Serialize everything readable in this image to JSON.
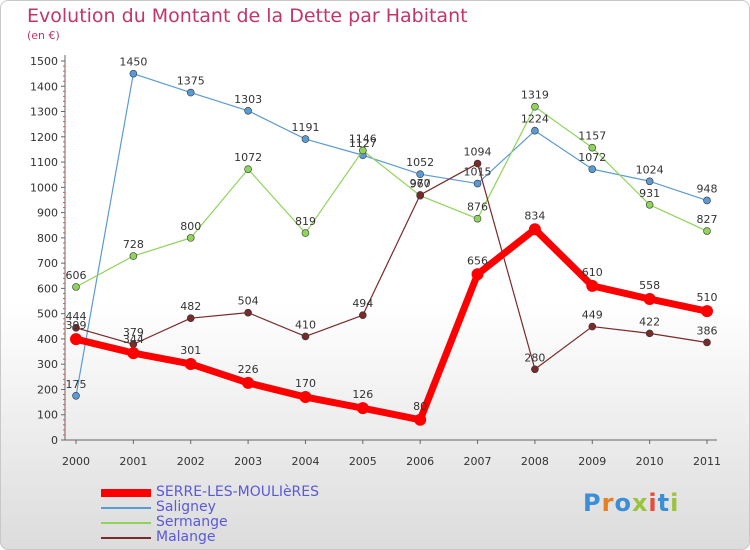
{
  "title": "Evolution du Montant de la Dette par Habitant",
  "subtitle": "(en €)",
  "logo": "Proxiti",
  "chart_data": {
    "type": "line",
    "title": "Evolution du Montant de la Dette par Habitant",
    "ylabel": "(en €)",
    "xlabel": "",
    "ylim": [
      0,
      1500
    ],
    "yticks": [
      0,
      100,
      200,
      300,
      400,
      500,
      600,
      700,
      800,
      900,
      1000,
      1100,
      1200,
      1300,
      1400,
      1500
    ],
    "grid": false,
    "categories": [
      "2000",
      "2001",
      "2002",
      "2003",
      "2004",
      "2005",
      "2006",
      "2007",
      "2008",
      "2009",
      "2010",
      "2011"
    ],
    "series": [
      {
        "name": "SERRE-LES-MOULIèRES",
        "color": "#ff0000",
        "values": [
          399,
          344,
          301,
          226,
          170,
          126,
          80,
          656,
          834,
          610,
          558,
          510
        ]
      },
      {
        "name": "Saligney",
        "color": "#5b9bd5",
        "values": [
          175,
          1450,
          1375,
          1303,
          1191,
          1127,
          1052,
          1015,
          1224,
          1072,
          1024,
          948
        ]
      },
      {
        "name": "Sermange",
        "color": "#8fd45a",
        "values": [
          606,
          728,
          800,
          1072,
          819,
          1146,
          967,
          876,
          1319,
          1157,
          931,
          827
        ]
      },
      {
        "name": "Malange",
        "color": "#7a2a2a",
        "values": [
          444,
          379,
          482,
          504,
          410,
          494,
          970,
          1094,
          280,
          449,
          422,
          386
        ]
      }
    ]
  }
}
